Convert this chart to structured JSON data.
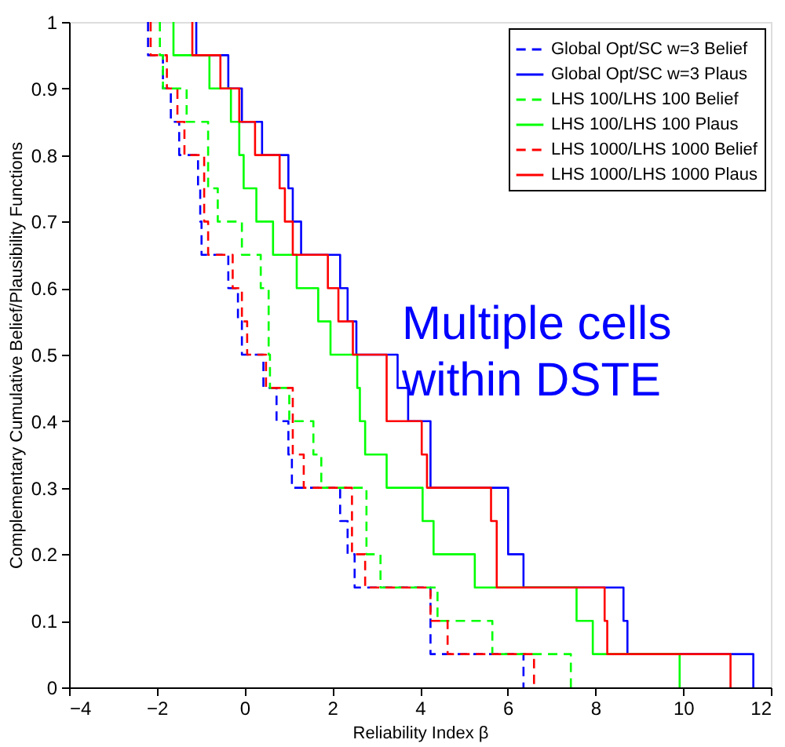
{
  "chart_data": {
    "type": "step",
    "xlabel": "Reliability Index β",
    "ylabel": "Complementary Cumulative Belief/Plausibility Functions",
    "xlim": [
      -4,
      12
    ],
    "ylim": [
      0,
      1
    ],
    "xticks": [
      -4,
      -2,
      0,
      2,
      4,
      6,
      8,
      10,
      12
    ],
    "yticks": [
      0,
      0.1,
      0.2,
      0.3,
      0.4,
      0.5,
      0.6,
      0.7,
      0.8,
      0.9,
      1
    ],
    "grid": false,
    "legend": "top right",
    "marker": "none",
    "annotations": [
      "Multiple cells\nwithin DSTE"
    ],
    "series": [
      {
        "name": "Global Opt/SC w=3 Belief",
        "color": "#0000ff",
        "line_style": "dashed",
        "x": [
          -2.2,
          -2.2,
          -1.86,
          -1.68,
          -1.49,
          -1.06,
          -1.01,
          -0.98,
          -0.37,
          -0.15,
          -0.06,
          0.43,
          0.73,
          1.0,
          1.08,
          2.18,
          2.35,
          2.51,
          4.24,
          6.36
        ],
        "values": [
          1,
          0.95,
          0.9,
          0.85,
          0.8,
          0.75,
          0.7,
          0.65,
          0.6,
          0.55,
          0.5,
          0.45,
          0.4,
          0.35,
          0.3,
          0.25,
          0.2,
          0.15,
          0.05,
          0
        ]
      },
      {
        "name": "Global Opt/SC w=3 Plaus",
        "color": "#0000ff",
        "line_style": "solid",
        "x": [
          -1.1,
          -1.1,
          -0.37,
          -0.06,
          0.4,
          1.0,
          1.1,
          1.29,
          2.18,
          2.35,
          2.55,
          3.49,
          3.73,
          4.24,
          6.01,
          6.36,
          8.64,
          8.73,
          11.6
        ],
        "values": [
          1,
          0.95,
          0.9,
          0.85,
          0.8,
          0.75,
          0.7,
          0.65,
          0.6,
          0.55,
          0.5,
          0.45,
          0.4,
          0.3,
          0.2,
          0.15,
          0.1,
          0.05,
          0
        ]
      },
      {
        "name": "LHS 100/LHS 100 Belief",
        "color": "#00ff00",
        "line_style": "dashed",
        "x": [
          -1.93,
          -1.93,
          -1.86,
          -1.32,
          -0.83,
          -0.61,
          -0.06,
          0.37,
          0.55,
          0.58,
          1.02,
          1.57,
          1.75,
          2.78,
          3.1,
          4.4,
          5.65,
          7.44
        ],
        "values": [
          1,
          0.95,
          0.9,
          0.85,
          0.75,
          0.7,
          0.65,
          0.6,
          0.5,
          0.45,
          0.4,
          0.35,
          0.3,
          0.2,
          0.15,
          0.1,
          0.05,
          0
        ]
      },
      {
        "name": "LHS 100/LHS 100 Plaus",
        "color": "#00ff00",
        "line_style": "solid",
        "x": [
          -1.62,
          -1.62,
          -0.8,
          -0.31,
          -0.12,
          -0.02,
          0.27,
          0.65,
          1.19,
          1.68,
          1.96,
          2.57,
          2.63,
          2.75,
          3.24,
          4.06,
          4.31,
          5.25,
          7.57,
          7.94,
          9.92
        ],
        "values": [
          1,
          0.95,
          0.9,
          0.85,
          0.8,
          0.75,
          0.7,
          0.65,
          0.6,
          0.55,
          0.5,
          0.45,
          0.4,
          0.35,
          0.3,
          0.25,
          0.2,
          0.15,
          0.1,
          0.05,
          0
        ]
      },
      {
        "name": "LHS 1000/LHS 1000 Belief",
        "color": "#ff0000",
        "line_style": "dashed",
        "x": [
          -2.14,
          -2.14,
          -1.77,
          -1.53,
          -1.37,
          -0.92,
          -0.83,
          -0.27,
          -0.06,
          0.06,
          0.49,
          1.1,
          1.35,
          2.45,
          2.75,
          4.24,
          4.63,
          6.6
        ],
        "values": [
          1,
          0.95,
          0.9,
          0.85,
          0.8,
          0.7,
          0.65,
          0.6,
          0.55,
          0.5,
          0.45,
          0.35,
          0.3,
          0.2,
          0.15,
          0.1,
          0.05,
          0
        ]
      },
      {
        "name": "LHS 1000/LHS 1000 Plaus",
        "color": "#ff0000",
        "line_style": "solid",
        "x": [
          -1.19,
          -1.19,
          -0.55,
          -0.12,
          0.24,
          0.8,
          0.92,
          1.1,
          1.9,
          2.14,
          2.47,
          3.24,
          4.04,
          4.16,
          5.62,
          5.75,
          8.21,
          8.27,
          11.08
        ],
        "values": [
          1,
          0.95,
          0.9,
          0.85,
          0.8,
          0.75,
          0.7,
          0.65,
          0.6,
          0.55,
          0.5,
          0.4,
          0.35,
          0.3,
          0.25,
          0.15,
          0.1,
          0.05,
          0
        ]
      }
    ]
  }
}
